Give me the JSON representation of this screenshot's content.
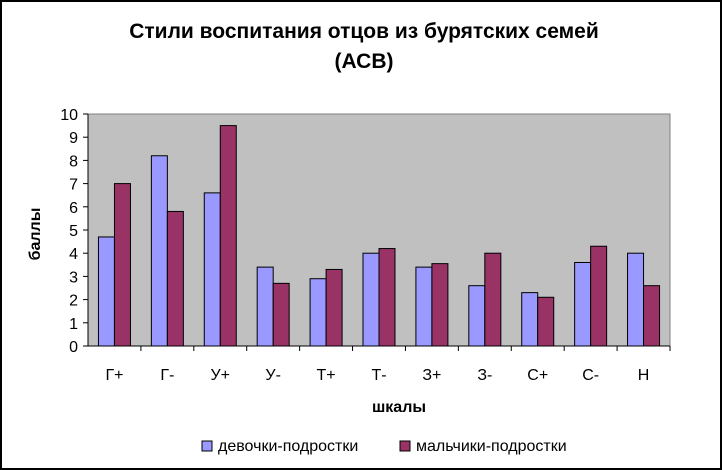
{
  "chart_data": {
    "type": "bar",
    "title": "Стили воспитания отцов из бурятских семей",
    "subtitle": "(АСВ)",
    "xlabel": "шкалы",
    "ylabel": "баллы",
    "ylim": [
      0,
      10
    ],
    "yticks": [
      "0",
      "1",
      "2",
      "3",
      "4",
      "5",
      "6",
      "7",
      "8",
      "9",
      "10"
    ],
    "categories": [
      "Г+",
      "Г-",
      "У+",
      "У-",
      "Т+",
      "Т-",
      "З+",
      "З-",
      "С+",
      "С-",
      "Н"
    ],
    "series": [
      {
        "name": "девочки-подростки",
        "color": "#9999ff",
        "values": [
          4.7,
          8.2,
          6.6,
          3.4,
          2.9,
          4.0,
          3.4,
          2.6,
          2.3,
          3.6,
          4.0
        ]
      },
      {
        "name": "мальчики-подростки",
        "color": "#993366",
        "values": [
          7.0,
          5.8,
          9.5,
          2.7,
          3.3,
          4.2,
          3.55,
          4.0,
          2.1,
          4.3,
          2.6
        ]
      }
    ],
    "grid": false,
    "plot_background": "#c0c0c0",
    "legend_position": "bottom"
  }
}
